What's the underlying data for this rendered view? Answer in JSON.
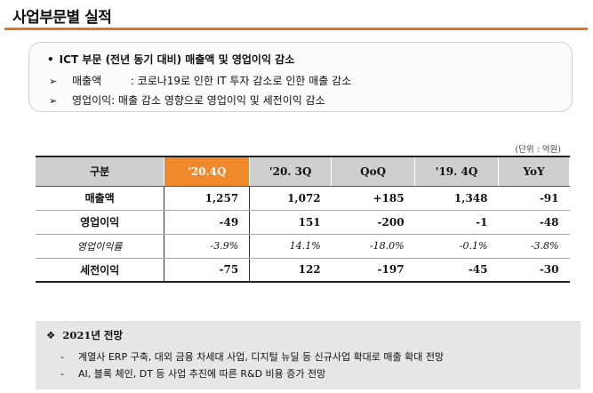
{
  "page_title": "사업부문별 실적",
  "summary": {
    "bullet": "•",
    "heading": "ICT 부문 (전년 동기 대비) 매출액 및 영업이익 감소",
    "arrow": "➢",
    "items": [
      {
        "label": "매출액",
        "sep": " : ",
        "text": "코로나19로 인한 IT 투자 감소로 인한 매출 감소"
      },
      {
        "label": "영업이익",
        "sep": ": ",
        "text": "매출 감소 영향으로 영업이익 및 세전이익 감소"
      }
    ]
  },
  "unit": "(단위 : 억원)",
  "table": {
    "headers": [
      "구분",
      "'20.4Q",
      "'20. 3Q",
      "QoQ",
      "'19. 4Q",
      "YoY"
    ],
    "rows": [
      {
        "label": "매출액",
        "values": [
          "1,257",
          "1,072",
          "+185",
          "1,348",
          "-91"
        ]
      },
      {
        "label": "영업이익",
        "values": [
          "-49",
          "151",
          "-200",
          "-1",
          "-48"
        ]
      },
      {
        "label": "영업이익률",
        "values": [
          "-3.9%",
          "14.1%",
          "-18.0%",
          "-0.1%",
          "-3.8%"
        ]
      },
      {
        "label": "세전이익",
        "values": [
          "-75",
          "122",
          "-197",
          "-45",
          "-30"
        ]
      }
    ]
  },
  "outlook": {
    "bullet": "❖",
    "title": "2021년 전망",
    "dash": "-",
    "items": [
      "계열사 ERP 구축, 대외 금융 차세대 사업, 디지털 뉴딜 등 신규사업 확대로 매출 확대 전망",
      "AI, 블록 체인, DT 등 사업 추진에 따른  R&D 비용 증가 전망"
    ]
  },
  "colors": {
    "accent": "#e8741e",
    "highlight_header": "#f0892b",
    "header_bg": "#cfcfcf",
    "outlook_bg": "#e6e6e6"
  }
}
